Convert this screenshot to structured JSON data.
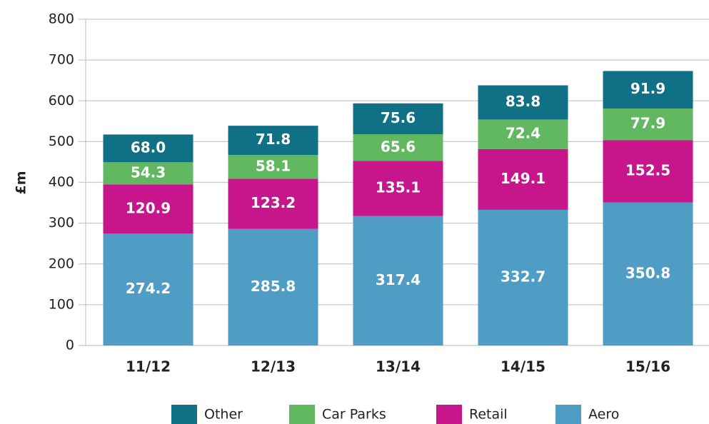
{
  "chart_data": {
    "type": "stacked_bar",
    "y_label": "£m",
    "categories": [
      "11/12",
      "12/13",
      "13/14",
      "14/15",
      "15/16"
    ],
    "series": [
      {
        "name": "Aero",
        "color": "#4f9dc4",
        "values": [
          274.2,
          285.8,
          317.4,
          332.7,
          350.8
        ],
        "value_labels": [
          "274.2",
          "285.8",
          "317.4",
          "332.7",
          "350.8"
        ]
      },
      {
        "name": "Retail",
        "color": "#c7168c",
        "values": [
          120.9,
          123.2,
          135.1,
          149.1,
          152.5
        ],
        "value_labels": [
          "120.9",
          "123.2",
          "135.1",
          "149.1",
          "152.5"
        ]
      },
      {
        "name": "Car Parks",
        "color": "#62b860",
        "values": [
          54.3,
          58.1,
          65.6,
          72.4,
          77.9
        ],
        "value_labels": [
          "54.3",
          "58.1",
          "65.6",
          "72.4",
          "77.9"
        ]
      },
      {
        "name": "Other",
        "color": "#0f7086",
        "values": [
          68,
          71.8,
          75.6,
          83.8,
          91.9
        ],
        "value_labels": [
          "68.0",
          "71.8",
          "75.6",
          "83.8",
          "91.9"
        ]
      }
    ],
    "ylim": [
      0,
      800
    ],
    "yticks": [
      0,
      100,
      200,
      300,
      400,
      500,
      600,
      700,
      800
    ],
    "grid": true,
    "legend": "bottom"
  }
}
